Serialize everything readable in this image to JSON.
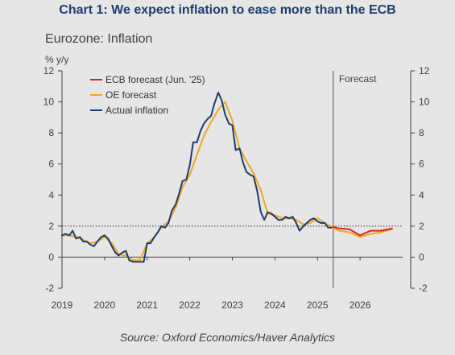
{
  "header": {
    "title": "Chart 1: We expect inflation to ease more than the ECB",
    "subtitle": "Eurozone: Inflation",
    "unit": "% y/y",
    "source": "Source: Oxford Economics/Haver Analytics"
  },
  "colors": {
    "ecb": "#e02020",
    "oe": "#f0a818",
    "actual": "#1b3d6e",
    "axis": "#404040",
    "reference": "#333333"
  },
  "chart_data": {
    "type": "line",
    "ylim": [
      -2,
      12
    ],
    "yticks": [
      -2,
      0,
      2,
      4,
      6,
      8,
      10,
      12
    ],
    "xlim": [
      2019,
      2027
    ],
    "xticks": [
      2019,
      2020,
      2021,
      2022,
      2023,
      2024,
      2025,
      2026
    ],
    "reference_line_y": 2,
    "forecast_start": 2025.37,
    "forecast_label": "Forecast",
    "legend_position": "top-left",
    "series": [
      {
        "name": "ECB forecast (Jun. '25)",
        "color_key": "ecb",
        "x": [
          2025.37,
          2025.5,
          2025.75,
          2026.0,
          2026.25,
          2026.5,
          2026.75
        ],
        "y": [
          1.95,
          1.85,
          1.8,
          1.4,
          1.7,
          1.7,
          1.85
        ]
      },
      {
        "name": "OE forecast",
        "color_key": "oe",
        "x": [
          2019.0,
          2019.17,
          2019.33,
          2019.5,
          2019.67,
          2019.83,
          2020.0,
          2020.17,
          2020.33,
          2020.5,
          2020.67,
          2020.83,
          2021.0,
          2021.17,
          2021.33,
          2021.5,
          2021.67,
          2021.83,
          2022.0,
          2022.17,
          2022.33,
          2022.5,
          2022.67,
          2022.83,
          2023.0,
          2023.17,
          2023.33,
          2023.5,
          2023.67,
          2023.83,
          2024.0,
          2024.17,
          2024.33,
          2024.5,
          2024.67,
          2024.83,
          2025.0,
          2025.17,
          2025.37,
          2025.5,
          2025.75,
          2026.0,
          2026.25,
          2026.5,
          2026.75
        ],
        "y": [
          1.4,
          1.4,
          1.3,
          1.1,
          0.9,
          1.0,
          1.3,
          0.9,
          0.2,
          0.1,
          -0.2,
          -0.2,
          0.9,
          1.3,
          1.9,
          2.3,
          3.2,
          4.5,
          5.3,
          6.6,
          7.8,
          8.7,
          9.5,
          10.0,
          8.8,
          7.0,
          6.2,
          5.4,
          4.3,
          2.8,
          2.7,
          2.5,
          2.5,
          2.4,
          2.1,
          2.2,
          2.5,
          2.2,
          1.9,
          1.7,
          1.6,
          1.3,
          1.5,
          1.6,
          1.8
        ]
      },
      {
        "name": "Actual inflation",
        "color_key": "actual",
        "x": [
          2019.0,
          2019.08,
          2019.17,
          2019.25,
          2019.33,
          2019.42,
          2019.5,
          2019.58,
          2019.67,
          2019.75,
          2019.83,
          2019.92,
          2020.0,
          2020.08,
          2020.17,
          2020.25,
          2020.33,
          2020.42,
          2020.5,
          2020.58,
          2020.67,
          2020.75,
          2020.83,
          2020.92,
          2021.0,
          2021.08,
          2021.17,
          2021.25,
          2021.33,
          2021.42,
          2021.5,
          2021.58,
          2021.67,
          2021.75,
          2021.83,
          2021.92,
          2022.0,
          2022.08,
          2022.17,
          2022.25,
          2022.33,
          2022.42,
          2022.5,
          2022.58,
          2022.67,
          2022.75,
          2022.83,
          2022.92,
          2023.0,
          2023.08,
          2023.17,
          2023.25,
          2023.33,
          2023.42,
          2023.5,
          2023.58,
          2023.67,
          2023.75,
          2023.83,
          2023.92,
          2024.0,
          2024.08,
          2024.17,
          2024.25,
          2024.33,
          2024.42,
          2024.5,
          2024.58,
          2024.67,
          2024.75,
          2024.83,
          2024.92,
          2025.0,
          2025.08,
          2025.17,
          2025.25,
          2025.33
        ],
        "y": [
          1.4,
          1.5,
          1.4,
          1.7,
          1.2,
          1.3,
          1.0,
          1.0,
          0.8,
          0.7,
          1.0,
          1.3,
          1.4,
          1.2,
          0.7,
          0.3,
          0.1,
          0.3,
          0.4,
          -0.2,
          -0.3,
          -0.3,
          -0.3,
          -0.3,
          0.9,
          0.9,
          1.3,
          1.6,
          2.0,
          1.9,
          2.2,
          3.0,
          3.4,
          4.1,
          4.9,
          5.0,
          5.9,
          7.4,
          7.4,
          8.1,
          8.6,
          8.9,
          9.1,
          9.9,
          10.6,
          10.1,
          9.2,
          8.6,
          8.5,
          6.9,
          7.0,
          6.1,
          5.5,
          5.3,
          5.2,
          4.3,
          2.9,
          2.4,
          2.9,
          2.8,
          2.6,
          2.4,
          2.4,
          2.6,
          2.5,
          2.6,
          2.2,
          1.7,
          2.0,
          2.2,
          2.4,
          2.5,
          2.3,
          2.2,
          2.2,
          1.9,
          1.9
        ]
      }
    ]
  }
}
